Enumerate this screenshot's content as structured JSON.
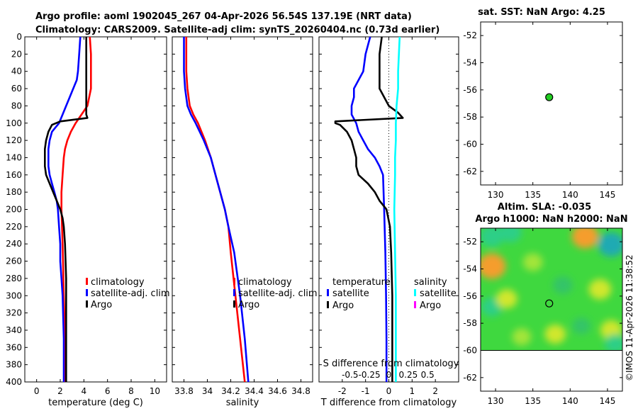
{
  "header": {
    "line1": "Argo profile: aoml 1902045_267 04-Apr-2026 56.54S 137.19E (NRT data)",
    "line2": "Climatology: CARS2009. Satellite-adj clim: synTS_20260404.nc (0.73d earlier)"
  },
  "credit": "©IMOS 11-Apr-2026 11:38:52",
  "colors": {
    "climatology": "#ff0000",
    "satellite": "#0000ff",
    "argo": "#000000",
    "salinity_satellite": "#00ffff",
    "salinity_argo": "#ff00ff",
    "float_marker": "#22cc22"
  },
  "chart_data": [
    {
      "id": "temperature",
      "type": "line",
      "xlabel": "temperature (deg C)",
      "xlim": [
        -1,
        11
      ],
      "xticks": [
        0,
        2,
        4,
        6,
        8,
        10
      ],
      "xtick_labels": [
        "0",
        "2",
        "4",
        "6",
        "8",
        "10"
      ],
      "ylim": [
        0,
        400
      ],
      "yticks": [
        0,
        20,
        40,
        60,
        80,
        100,
        120,
        140,
        160,
        180,
        200,
        220,
        240,
        260,
        280,
        300,
        320,
        340,
        360,
        380,
        400
      ],
      "ytick_labels": [
        "0",
        "20",
        "40",
        "60",
        "80",
        "100",
        "120",
        "140",
        "160",
        "180",
        "200",
        "220",
        "240",
        "260",
        "280",
        "300",
        "320",
        "340",
        "360",
        "380",
        "400"
      ],
      "legend": {
        "position": "lower-right",
        "entries": [
          {
            "label": "climatology",
            "series": "climatology"
          },
          {
            "label": "satellite-adj. clim",
            "series": "satellite"
          },
          {
            "label": "Argo",
            "series": "argo"
          }
        ]
      },
      "series": [
        {
          "name": "climatology",
          "color": "#ff0000",
          "depth": [
            0,
            20,
            40,
            60,
            80,
            90,
            100,
            110,
            120,
            130,
            140,
            160,
            180,
            200,
            240,
            300,
            350,
            400
          ],
          "values": [
            4.5,
            4.6,
            4.6,
            4.6,
            4.3,
            3.8,
            3.3,
            2.9,
            2.6,
            2.4,
            2.3,
            2.2,
            2.1,
            2.1,
            2.2,
            2.3,
            2.4,
            2.4
          ]
        },
        {
          "name": "satellite",
          "color": "#0000ff",
          "depth": [
            0,
            20,
            40,
            50,
            60,
            70,
            80,
            90,
            100,
            105,
            110,
            120,
            130,
            140,
            150,
            160,
            170,
            180,
            190,
            200,
            220,
            240,
            260,
            280,
            300,
            350,
            400
          ],
          "values": [
            3.7,
            3.6,
            3.5,
            3.4,
            3.1,
            2.8,
            2.5,
            2.2,
            1.9,
            1.6,
            1.3,
            1.1,
            1.0,
            1.0,
            1.0,
            1.1,
            1.3,
            1.5,
            1.7,
            1.8,
            1.9,
            2.0,
            2.0,
            2.1,
            2.2,
            2.3,
            2.3
          ]
        },
        {
          "name": "argo",
          "color": "#000000",
          "depth": [
            0,
            10,
            20,
            40,
            60,
            80,
            90,
            94,
            98,
            102,
            110,
            120,
            130,
            140,
            150,
            160,
            170,
            180,
            190,
            200,
            210,
            220,
            240,
            280,
            320,
            360,
            400
          ],
          "values": [
            4.2,
            4.2,
            4.2,
            4.2,
            4.2,
            4.2,
            4.2,
            4.3,
            2.0,
            1.3,
            1.0,
            0.8,
            0.7,
            0.7,
            0.7,
            0.8,
            1.1,
            1.4,
            1.7,
            2.0,
            2.2,
            2.3,
            2.4,
            2.5,
            2.5,
            2.5,
            2.5
          ]
        }
      ]
    },
    {
      "id": "salinity",
      "type": "line",
      "xlabel": "salinity",
      "xlim": [
        33.7,
        34.9
      ],
      "xticks": [
        33.8,
        34.0,
        34.2,
        34.4,
        34.6,
        34.8
      ],
      "xtick_labels": [
        "33.8",
        "34",
        "34.2",
        "34.4",
        "34.6",
        "34.8"
      ],
      "ylim": [
        0,
        400
      ],
      "legend": {
        "position": "lower-right",
        "entries": [
          {
            "label": "climatology",
            "series": "climatology"
          },
          {
            "label": "satellite-adj. clim",
            "series": "satellite"
          },
          {
            "label": "Argo",
            "series": "argo"
          }
        ]
      },
      "series": [
        {
          "name": "climatology",
          "color": "#ff0000",
          "depth": [
            0,
            20,
            40,
            60,
            80,
            90,
            100,
            120,
            140,
            160,
            180,
            200,
            220,
            250,
            300,
            350,
            400
          ],
          "values": [
            33.82,
            33.82,
            33.82,
            33.83,
            33.85,
            33.88,
            33.92,
            33.98,
            34.03,
            34.07,
            34.11,
            34.15,
            34.18,
            34.2,
            34.24,
            34.28,
            34.32
          ]
        },
        {
          "name": "satellite",
          "color": "#0000ff",
          "depth": [
            0,
            20,
            40,
            60,
            80,
            90,
            100,
            120,
            140,
            160,
            180,
            200,
            220,
            250,
            300,
            350,
            400
          ],
          "values": [
            33.8,
            33.8,
            33.8,
            33.81,
            33.83,
            33.86,
            33.9,
            33.97,
            34.03,
            34.07,
            34.11,
            34.15,
            34.18,
            34.23,
            34.28,
            34.32,
            34.35
          ]
        },
        {
          "name": "argo",
          "color": "#000000",
          "depth": [],
          "values": []
        }
      ]
    },
    {
      "id": "t-difference",
      "type": "line",
      "xlabel": "T difference from climatology",
      "xlim": [
        -3,
        3
      ],
      "xticks": [
        -2,
        -1,
        0,
        1,
        2
      ],
      "xtick_labels": [
        "-2",
        "-1",
        "0",
        "1",
        "2"
      ],
      "top_label": "S difference from climatology",
      "top_ticks": [
        -0.5,
        -0.25,
        0,
        0.25,
        0.5
      ],
      "top_tick_labels": [
        "-0.5",
        "-0.25",
        "0",
        "0.25",
        "0.5"
      ],
      "top_lim": [
        -0.9,
        0.9
      ],
      "ylim": [
        0,
        400
      ],
      "legend": {
        "groups": [
          {
            "heading": "temperature",
            "entries": [
              {
                "label": "satellite",
                "series": "t_satellite"
              },
              {
                "label": "Argo",
                "series": "t_argo"
              }
            ]
          },
          {
            "heading": "salinity",
            "entries": [
              {
                "label": "satellite",
                "series": "s_satellite"
              },
              {
                "label": "Argo",
                "series": "s_argo"
              }
            ]
          }
        ]
      },
      "series": [
        {
          "name": "t_satellite",
          "color": "#0000ff",
          "depth": [
            0,
            20,
            40,
            60,
            70,
            80,
            90,
            100,
            110,
            120,
            130,
            140,
            150,
            160,
            200,
            250,
            300,
            350,
            400
          ],
          "values": [
            -0.8,
            -1.0,
            -1.1,
            -1.5,
            -1.5,
            -1.6,
            -1.6,
            -1.4,
            -1.3,
            -1.1,
            -0.9,
            -0.6,
            -0.4,
            -0.25,
            -0.2,
            -0.15,
            -0.12,
            -0.1,
            -0.1
          ]
        },
        {
          "name": "t_argo",
          "color": "#000000",
          "depth": [
            0,
            20,
            40,
            60,
            80,
            88,
            94,
            98,
            100,
            102,
            110,
            120,
            130,
            140,
            150,
            160,
            170,
            180,
            190,
            200,
            220,
            250,
            300,
            350,
            400
          ],
          "values": [
            -0.3,
            -0.4,
            -0.4,
            -0.4,
            0.0,
            0.4,
            0.6,
            -2.3,
            -2.3,
            -2.1,
            -1.8,
            -1.6,
            -1.5,
            -1.4,
            -1.4,
            -1.3,
            -0.9,
            -0.6,
            -0.4,
            -0.1,
            0.05,
            0.1,
            0.15,
            0.15,
            0.15
          ]
        },
        {
          "name": "s_satellite",
          "color": "#00ffff",
          "depth": [
            0,
            20,
            40,
            60,
            80,
            100,
            120,
            140,
            160,
            200,
            250,
            300,
            350,
            400
          ],
          "values": [
            0.14,
            0.13,
            0.12,
            0.12,
            0.1,
            0.09,
            0.09,
            0.08,
            0.08,
            0.07,
            0.08,
            0.09,
            0.09,
            0.09
          ]
        },
        {
          "name": "s_argo",
          "color": "#ff00ff",
          "depth": [],
          "values": []
        }
      ]
    },
    {
      "id": "sst-map",
      "type": "scatter",
      "title": "sat. SST: NaN Argo: 4.25",
      "xlim": [
        128,
        147
      ],
      "xticks": [
        130,
        135,
        140,
        145
      ],
      "xtick_labels": [
        "130",
        "135",
        "140",
        "145"
      ],
      "ylim": [
        -63,
        -51
      ],
      "yticks": [
        -62,
        -60,
        -58,
        -56,
        -54,
        -52
      ],
      "ytick_labels": [
        "-62",
        "-60",
        "-58",
        "-56",
        "-54",
        "-52"
      ],
      "points": [
        {
          "lon": 137.19,
          "lat": -56.54
        }
      ]
    },
    {
      "id": "sla-map",
      "type": "heatmap",
      "title_line1": "Altim. SLA: -0.035",
      "title_line2": "Argo h1000: NaN h2000: NaN",
      "xlim": [
        128,
        147
      ],
      "xticks": [
        130,
        135,
        140,
        145
      ],
      "xtick_labels": [
        "130",
        "135",
        "140",
        "145"
      ],
      "ylim": [
        -63,
        -51
      ],
      "yticks": [
        -62,
        -60,
        -58,
        -56,
        -54,
        -52
      ],
      "ytick_labels": [
        "-62",
        "-60",
        "-58",
        "-56",
        "-54",
        "-52"
      ],
      "data_extent_lat": [
        -60,
        -51
      ],
      "points": [
        {
          "lon": 137.19,
          "lat": -56.54
        }
      ],
      "blobs": [
        {
          "lon": 129.5,
          "lat": -53.8,
          "v": 1.0
        },
        {
          "lon": 142.0,
          "lat": -51.6,
          "v": 0.9
        },
        {
          "lon": 145.5,
          "lat": -52.2,
          "v": -0.9
        },
        {
          "lon": 132.0,
          "lat": -51.3,
          "v": -0.6
        },
        {
          "lon": 129.5,
          "lat": -51.6,
          "v": -0.7
        },
        {
          "lon": 129.5,
          "lat": -56.8,
          "v": -0.5
        },
        {
          "lon": 131.5,
          "lat": -56.2,
          "v": 0.5
        },
        {
          "lon": 135.0,
          "lat": -53.5,
          "v": 0.4
        },
        {
          "lon": 139.0,
          "lat": -55.2,
          "v": -0.4
        },
        {
          "lon": 144.0,
          "lat": -55.5,
          "v": 0.6
        },
        {
          "lon": 138.0,
          "lat": -58.8,
          "v": 0.5
        },
        {
          "lon": 141.5,
          "lat": -58.2,
          "v": -0.3
        },
        {
          "lon": 145.5,
          "lat": -58.5,
          "v": 0.55
        },
        {
          "lon": 133.5,
          "lat": -59.0,
          "v": 0.35
        },
        {
          "lon": 146.0,
          "lat": -59.5,
          "v": -0.5
        }
      ]
    }
  ]
}
